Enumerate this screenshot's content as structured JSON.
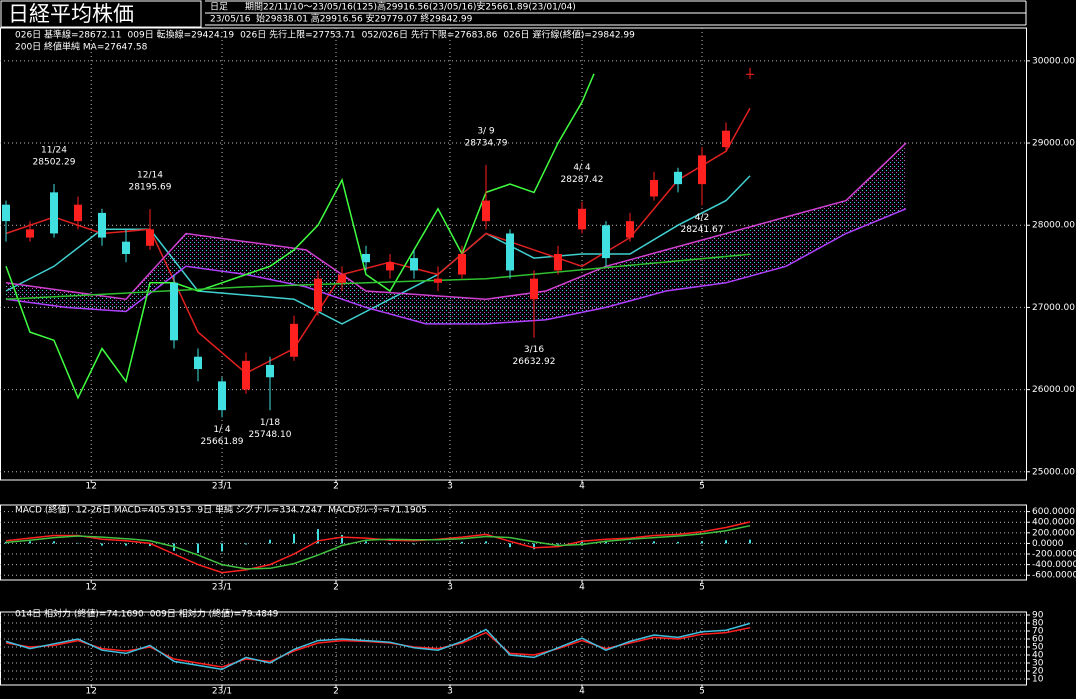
{
  "header": {
    "title": "日経平均株価",
    "period_type": "日足",
    "period": "期間22/11/10～23/05/16(125)高29916.56(23/05/16)安25661.89(23/01/04)",
    "date": "23/05/16",
    "ohlc": "始29838.01 高29916.56 安29779.07 終29842.99"
  },
  "chart_data": [
    {
      "type": "candlestick",
      "xlim": [
        -1,
        170
      ],
      "xticks": [
        {
          "value": 14.2,
          "label": "12"
        },
        {
          "value": 36,
          "label": "23/1"
        },
        {
          "value": 55,
          "label": "2"
        },
        {
          "value": 74,
          "label": "3"
        },
        {
          "value": 96,
          "label": "4"
        },
        {
          "value": 116,
          "label": "5"
        }
      ],
      "ylim": [
        24900,
        30400
      ],
      "yticks": [
        {
          "value": 30000,
          "label": "30000.00"
        },
        {
          "value": 29000,
          "label": "29000.00"
        },
        {
          "value": 28000,
          "label": "28000.00"
        },
        {
          "value": 27000,
          "label": "27000.00"
        },
        {
          "value": 26000,
          "label": "26000.00"
        },
        {
          "value": 25000,
          "label": "25000.00"
        }
      ],
      "grid": true,
      "up_color": "#ff2020",
      "down_color": "#40e0e0",
      "candles": {
        "x": [
          0,
          4,
          8,
          12,
          16,
          20,
          24,
          28,
          32,
          36,
          40,
          44,
          48,
          52,
          56,
          60,
          64,
          68,
          72,
          76,
          80,
          84,
          88,
          92,
          96,
          100,
          104,
          108,
          112,
          116,
          120,
          124
        ],
        "open": [
          28250,
          27850,
          28400,
          28050,
          28150,
          27800,
          27750,
          27300,
          26400,
          26100,
          26000,
          26300,
          26400,
          26950,
          27300,
          27650,
          27450,
          27600,
          27300,
          27400,
          28050,
          27900,
          27100,
          27450,
          27950,
          28000,
          27850,
          28350,
          28650,
          28500,
          28950,
          29838.01
        ],
        "high": [
          28300,
          28050,
          28502.29,
          28350,
          28200,
          27950,
          28195.69,
          27400,
          26500,
          26150,
          26450,
          26400,
          26900,
          27450,
          27500,
          27750,
          27650,
          27700,
          27500,
          27750,
          28734.79,
          27950,
          27450,
          27750,
          28287.42,
          28050,
          28150,
          28650,
          28700,
          28950,
          29250,
          29916.56
        ],
        "low": [
          27800,
          27800,
          27850,
          27950,
          27750,
          27550,
          27700,
          26500,
          26100,
          25661.89,
          25950,
          25748.1,
          26350,
          26900,
          27200,
          27450,
          27350,
          27350,
          27200,
          27350,
          27950,
          27350,
          26632.92,
          27400,
          27900,
          27500,
          27800,
          28300,
          28400,
          28241.67,
          28900,
          29779.07
        ],
        "close": [
          28050,
          27950,
          27900,
          28250,
          27850,
          27650,
          27950,
          26600,
          26250,
          25750,
          26350,
          26150,
          26800,
          27350,
          27400,
          27550,
          27550,
          27450,
          27350,
          27650,
          28300,
          27450,
          27350,
          27650,
          28200,
          27600,
          28050,
          28550,
          28500,
          28850,
          29150,
          29842.99
        ]
      },
      "lines": [
        {
          "name": "026日 基準線=28672.11",
          "color": "#40d0d0",
          "x": [
            0,
            8,
            16,
            24,
            32,
            40,
            48,
            56,
            64,
            72,
            80,
            88,
            96,
            104,
            112,
            120,
            124
          ],
          "values": [
            27200,
            27500,
            27950,
            27950,
            27200,
            27150,
            27100,
            26800,
            27100,
            27400,
            27900,
            27600,
            27650,
            27650,
            28000,
            28300,
            28600
          ]
        },
        {
          "name": "009日 転換線=29424.19",
          "color": "#e02020",
          "x": [
            0,
            8,
            16,
            24,
            32,
            40,
            48,
            56,
            64,
            72,
            80,
            88,
            96,
            104,
            112,
            120,
            124
          ],
          "values": [
            27900,
            28100,
            27900,
            27950,
            26700,
            26200,
            26500,
            27400,
            27550,
            27400,
            27900,
            27700,
            27500,
            27850,
            28550,
            28900,
            29424.19
          ]
        },
        {
          "name": "026日 先行上限=27753.71",
          "color": "#d040d0",
          "x": [
            0,
            10,
            20,
            30,
            40,
            50,
            60,
            70,
            80,
            90,
            100,
            110,
            120,
            130,
            140,
            150
          ],
          "values": [
            27300,
            27200,
            27100,
            27900,
            27800,
            27700,
            27200,
            27150,
            27100,
            27200,
            27500,
            27700,
            27900,
            28100,
            28300,
            29000
          ]
        },
        {
          "name": "052/026日 先行下限=27683.86",
          "color": "#b040ff",
          "x": [
            0,
            10,
            20,
            30,
            40,
            50,
            60,
            70,
            80,
            90,
            100,
            110,
            120,
            130,
            140,
            150
          ],
          "values": [
            27100,
            27000,
            26950,
            27500,
            27400,
            27250,
            27000,
            26800,
            26800,
            26850,
            27000,
            27200,
            27300,
            27500,
            27900,
            28200
          ]
        },
        {
          "name": "026日 遅行線(終値)=29842.99",
          "color": "#40ff40",
          "x": [
            0,
            4,
            8,
            12,
            16,
            20,
            24,
            28,
            32,
            36,
            40,
            44,
            48,
            52,
            56,
            60,
            64,
            68,
            72,
            76,
            80,
            84,
            88,
            92,
            96,
            98
          ],
          "values": [
            27500,
            26700,
            26600,
            25900,
            26500,
            26100,
            27300,
            27300,
            27200,
            27300,
            27400,
            27500,
            27700,
            28000,
            28550,
            27400,
            27200,
            27700,
            28200,
            27650,
            28400,
            28500,
            28400,
            29000,
            29500,
            29842.99
          ]
        },
        {
          "name": "200日 終値単純 MA=27647.58",
          "color": "#30c030",
          "x": [
            0,
            40,
            80,
            124
          ],
          "values": [
            27100,
            27250,
            27350,
            27647.58
          ]
        }
      ],
      "cloud_between": [
        2,
        3
      ],
      "annotations": [
        {
          "x": 8,
          "kind": "high",
          "date": "11/24",
          "value": 28502.29,
          "label": "28502.29"
        },
        {
          "x": 24,
          "kind": "high",
          "date": "12/14",
          "value": 28195.69,
          "label": "28195.69"
        },
        {
          "x": 36,
          "kind": "low",
          "date": "1/ 4",
          "value": 25661.89,
          "label": "25661.89"
        },
        {
          "x": 44,
          "kind": "low",
          "date": "1/18",
          "value": 25748.1,
          "label": "25748.10"
        },
        {
          "x": 80,
          "kind": "high",
          "date": "3/ 9",
          "value": 28734.79,
          "label": "28734.79"
        },
        {
          "x": 88,
          "kind": "low",
          "date": "3/16",
          "value": 26632.92,
          "label": "26632.92"
        },
        {
          "x": 96,
          "kind": "high",
          "date": "4/ 4",
          "value": 28287.42,
          "label": "28287.42"
        },
        {
          "x": 116,
          "kind": "low",
          "date": "4/2",
          "value": 28241.67,
          "label": "28241.67"
        }
      ]
    },
    {
      "type": "macd",
      "title": "MACD (終値)",
      "xlim": [
        -1,
        170
      ],
      "xticks": [
        {
          "value": 14.2,
          "label": "12"
        },
        {
          "value": 36,
          "label": "23/1"
        },
        {
          "value": 55,
          "label": "2"
        },
        {
          "value": 74,
          "label": "3"
        },
        {
          "value": 96,
          "label": "4"
        },
        {
          "value": 116,
          "label": "5"
        }
      ],
      "ylim": [
        -690,
        725
      ],
      "yticks": [
        {
          "value": 600,
          "label": "600.0000"
        },
        {
          "value": 400,
          "label": "400.0000"
        },
        {
          "value": 200,
          "label": "200.0000"
        },
        {
          "value": 0,
          "label": "0.0000"
        },
        {
          "value": -200,
          "label": "-200.0000"
        },
        {
          "value": -400,
          "label": "-400.0000"
        },
        {
          "value": -600,
          "label": "-600.0000"
        }
      ],
      "grid": true,
      "x": [
        0,
        4,
        8,
        12,
        16,
        20,
        24,
        28,
        32,
        36,
        40,
        44,
        48,
        52,
        56,
        60,
        64,
        68,
        72,
        76,
        80,
        84,
        88,
        92,
        96,
        100,
        104,
        108,
        112,
        116,
        120,
        124
      ],
      "series": [
        {
          "name": "12-26日 MACD=405.9153",
          "color": "#ff2020",
          "type": "line",
          "values": [
            50,
            100,
            150,
            150,
            80,
            50,
            0,
            -200,
            -400,
            -550,
            -500,
            -400,
            -200,
            50,
            120,
            100,
            60,
            50,
            80,
            120,
            170,
            40,
            -80,
            -60,
            40,
            80,
            100,
            150,
            170,
            220,
            300,
            405.9153
          ]
        },
        {
          "name": "9日 単純 シグナル=334.7247",
          "color": "#40c040",
          "type": "line",
          "values": [
            20,
            60,
            110,
            140,
            120,
            90,
            50,
            -60,
            -220,
            -400,
            -480,
            -470,
            -380,
            -220,
            -40,
            60,
            80,
            70,
            70,
            90,
            130,
            110,
            30,
            -40,
            -20,
            40,
            80,
            110,
            140,
            180,
            240,
            334.7247
          ]
        },
        {
          "name": "MACDｵｼﾚｰﾀｰ=71.1905",
          "color": "#40e0e0",
          "type": "bar",
          "values": [
            30,
            40,
            40,
            10,
            -40,
            -40,
            -50,
            -140,
            -180,
            -150,
            -20,
            70,
            180,
            270,
            160,
            40,
            -20,
            -20,
            10,
            30,
            40,
            -70,
            -110,
            -20,
            60,
            40,
            20,
            40,
            30,
            40,
            60,
            71.1905
          ]
        }
      ]
    },
    {
      "type": "line",
      "xlim": [
        -1,
        170
      ],
      "xticks": [
        {
          "value": 14.2,
          "label": "12"
        },
        {
          "value": 36,
          "label": "23/1"
        },
        {
          "value": 55,
          "label": "2"
        },
        {
          "value": 74,
          "label": "3"
        },
        {
          "value": 96,
          "label": "4"
        },
        {
          "value": 116,
          "label": "5"
        }
      ],
      "ylim": [
        2.5,
        93.75
      ],
      "yticks": [
        90,
        80,
        70,
        60,
        50,
        40,
        30,
        20,
        10
      ],
      "grid": true,
      "x": [
        0,
        4,
        8,
        12,
        16,
        20,
        24,
        28,
        32,
        36,
        40,
        44,
        48,
        52,
        56,
        60,
        64,
        68,
        72,
        76,
        80,
        84,
        88,
        92,
        96,
        100,
        104,
        108,
        112,
        116,
        120,
        124
      ],
      "series": [
        {
          "name": "014日 相対力 (終値)=74.1690",
          "color": "#ff2020",
          "values": [
            55,
            50,
            52,
            58,
            48,
            45,
            50,
            35,
            30,
            25,
            35,
            32,
            45,
            55,
            58,
            57,
            55,
            50,
            48,
            55,
            68,
            42,
            40,
            48,
            58,
            48,
            55,
            62,
            60,
            66,
            68,
            74.169
          ]
        },
        {
          "name": "009日 相対力 (終値)=79.4849",
          "color": "#40c0e0",
          "values": [
            57,
            48,
            54,
            60,
            46,
            42,
            52,
            32,
            27,
            22,
            37,
            30,
            47,
            58,
            60,
            58,
            56,
            49,
            46,
            57,
            72,
            40,
            37,
            49,
            61,
            46,
            57,
            65,
            62,
            69,
            71,
            79.4849
          ]
        }
      ]
    }
  ]
}
